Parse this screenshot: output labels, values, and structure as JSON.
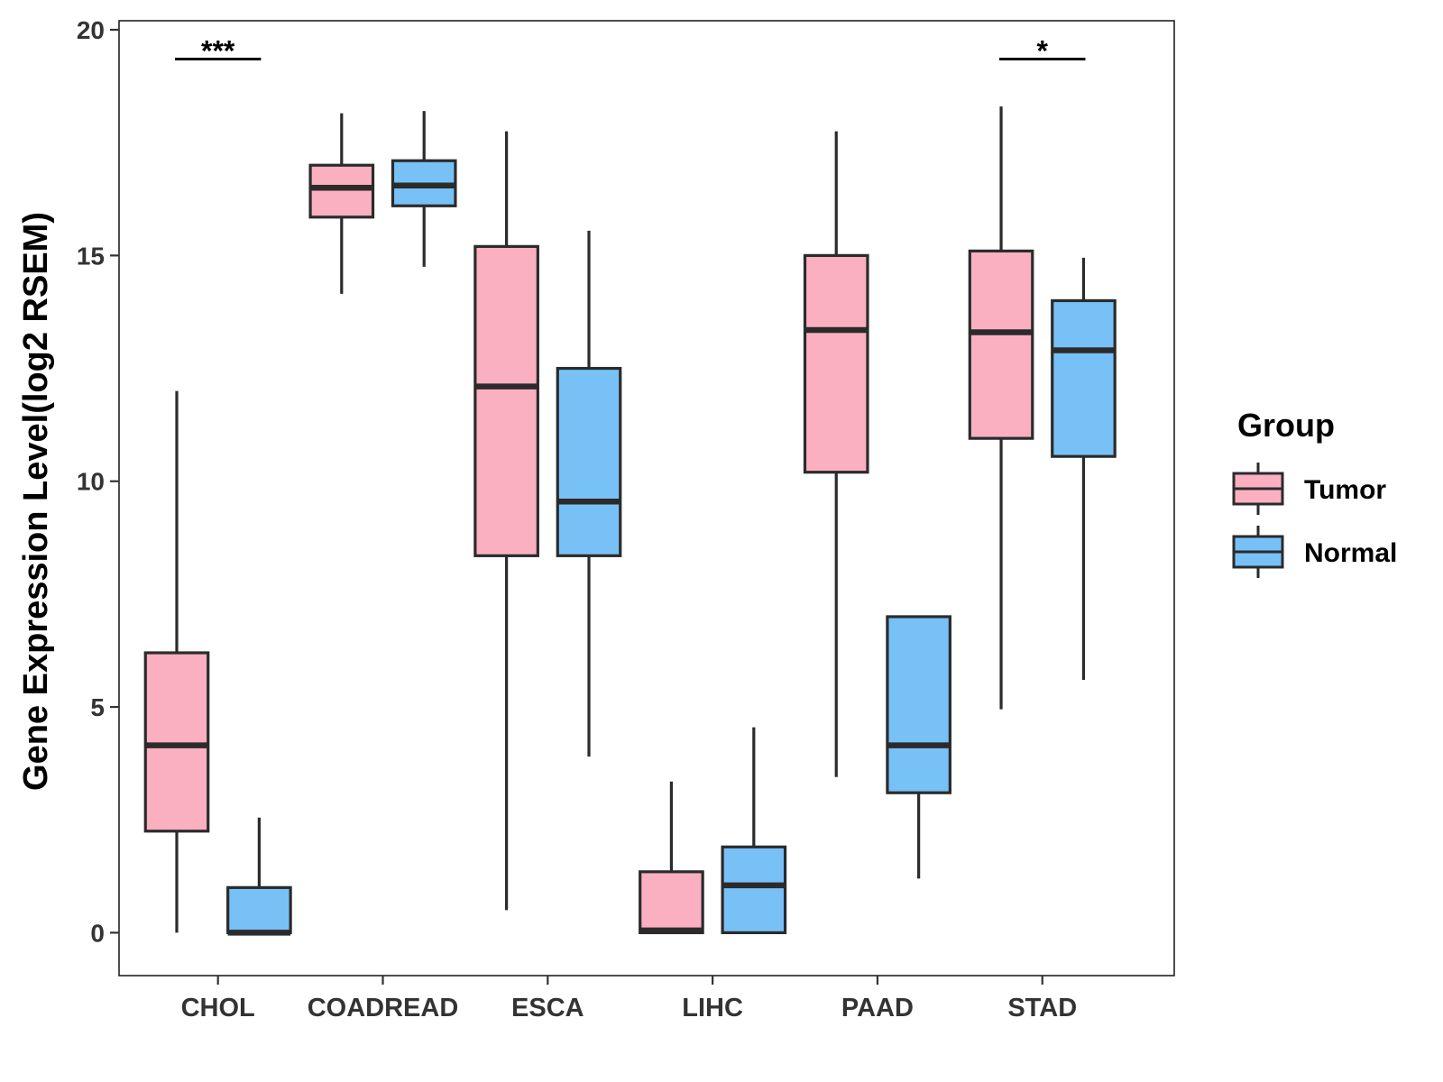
{
  "chart_data": {
    "type": "boxplot",
    "ylabel": "Gene Expression Level(log2 RSEM)",
    "xlabel": "",
    "ylim": [
      -0.95,
      20.2
    ],
    "yticks": [
      0,
      5,
      10,
      15,
      20
    ],
    "categories": [
      "CHOL",
      "COADREAD",
      "ESCA",
      "LIHC",
      "PAAD",
      "STAD"
    ],
    "legend": {
      "title": "Group",
      "position": "right",
      "entries": [
        "Tumor",
        "Normal"
      ]
    },
    "colors": {
      "Tumor": "#FBB0C1",
      "Normal": "#77C1F7",
      "stroke": "#2b2b2b"
    },
    "series": [
      {
        "name": "Tumor",
        "boxes": [
          {
            "category": "CHOL",
            "min": 0.0,
            "q1": 2.25,
            "median": 4.15,
            "q3": 6.2,
            "max": 12.0
          },
          {
            "category": "COADREAD",
            "min": 14.15,
            "q1": 15.85,
            "median": 16.5,
            "q3": 17.0,
            "max": 18.15
          },
          {
            "category": "ESCA",
            "min": 0.5,
            "q1": 8.35,
            "median": 12.1,
            "q3": 15.2,
            "max": 17.75
          },
          {
            "category": "LIHC",
            "min": 0.0,
            "q1": 0.0,
            "median": 0.05,
            "q3": 1.35,
            "max": 3.35
          },
          {
            "category": "PAAD",
            "min": 3.45,
            "q1": 10.2,
            "median": 13.35,
            "q3": 15.0,
            "max": 17.75
          },
          {
            "category": "STAD",
            "min": 4.95,
            "q1": 10.95,
            "median": 13.3,
            "q3": 15.1,
            "max": 18.3
          }
        ]
      },
      {
        "name": "Normal",
        "boxes": [
          {
            "category": "CHOL",
            "min": 0.0,
            "q1": 0.0,
            "median": 0.0,
            "q3": 1.0,
            "max": 2.55
          },
          {
            "category": "COADREAD",
            "min": 14.75,
            "q1": 16.1,
            "median": 16.55,
            "q3": 17.1,
            "max": 18.2
          },
          {
            "category": "ESCA",
            "min": 3.9,
            "q1": 8.35,
            "median": 9.55,
            "q3": 12.5,
            "max": 15.55
          },
          {
            "category": "LIHC",
            "min": 0.0,
            "q1": 0.0,
            "median": 1.05,
            "q3": 1.9,
            "max": 4.55
          },
          {
            "category": "PAAD",
            "min": 1.2,
            "q1": 3.1,
            "median": 4.15,
            "q3": 7.0,
            "max": 7.0
          },
          {
            "category": "STAD",
            "min": 5.6,
            "q1": 10.55,
            "median": 12.9,
            "q3": 14.0,
            "max": 14.95
          }
        ]
      }
    ],
    "annotations": [
      {
        "category": "CHOL",
        "text": "***",
        "y": 19.35
      },
      {
        "category": "STAD",
        "text": "*",
        "y": 19.35
      }
    ]
  }
}
